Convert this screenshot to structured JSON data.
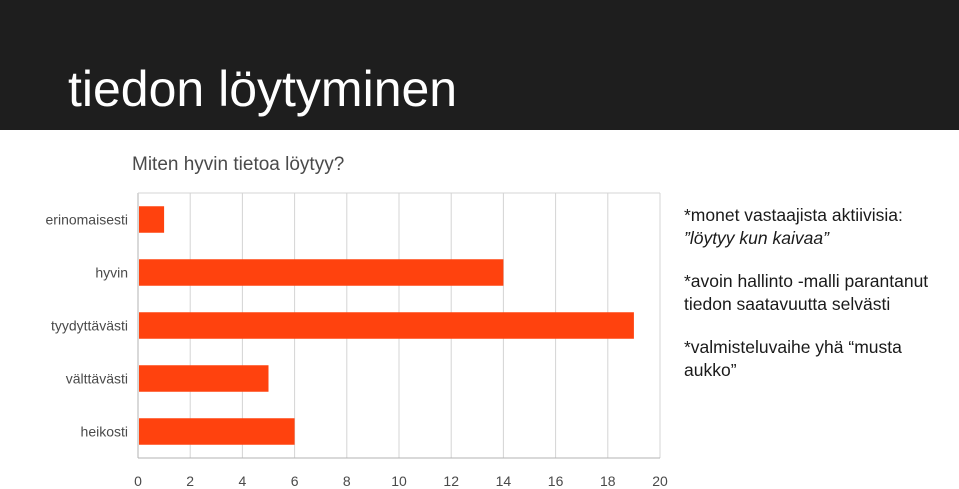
{
  "slide": {
    "title": "tiedon löytyminen",
    "header_color": "#1e1e1e"
  },
  "notes": [
    {
      "line1": "*monet vastaajista aktiivisia:",
      "line2": "”löytyy kun kaivaa”"
    },
    {
      "line1": "*avoin hallinto -malli parantanut",
      "line2": "tiedon saatavuutta selvästi"
    },
    {
      "line1": "*valmisteluvaihe yhä “musta",
      "line2": "aukko”"
    }
  ],
  "chart_data": {
    "type": "bar",
    "orientation": "horizontal",
    "title": "Miten hyvin tietoa löytyy?",
    "categories": [
      "erinomaisesti",
      "hyvin",
      "tyydyttävästi",
      "välttävästi",
      "heikosti"
    ],
    "values": [
      1,
      14,
      19,
      5,
      6
    ],
    "xlim": [
      0,
      20
    ],
    "xticks": [
      0,
      2,
      4,
      6,
      8,
      10,
      12,
      14,
      16,
      18,
      20
    ],
    "grid": true,
    "bar_color": "#ff420e"
  }
}
